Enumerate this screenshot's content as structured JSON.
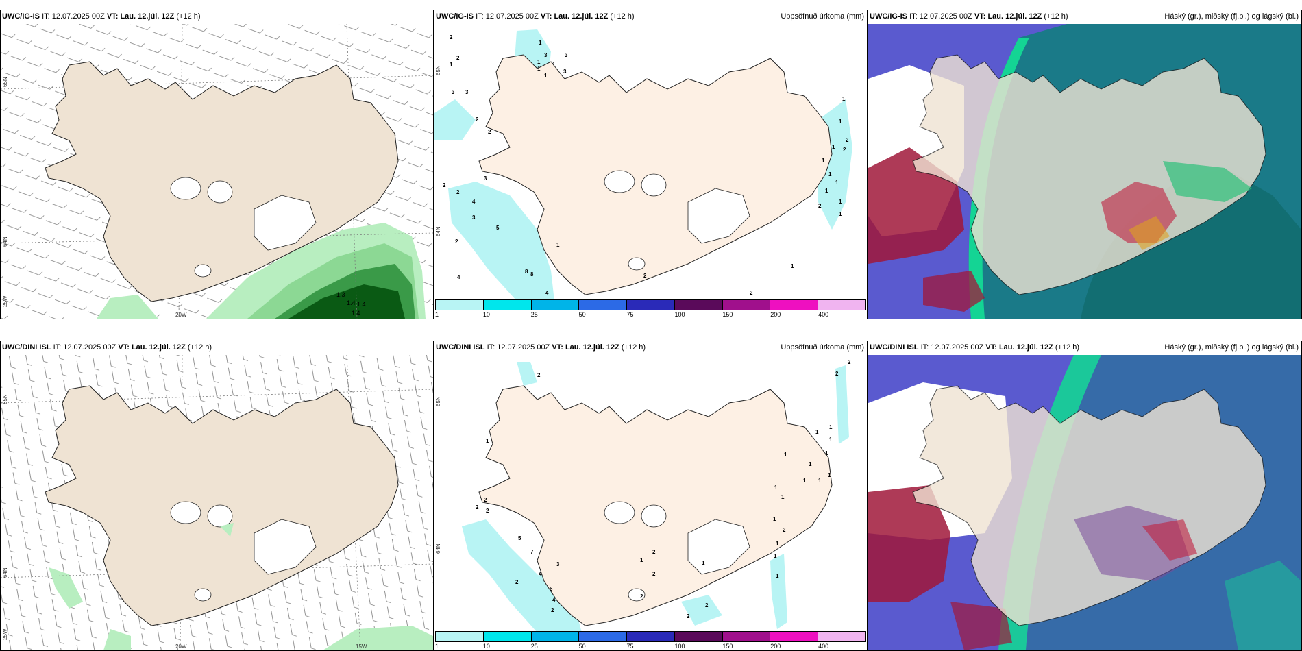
{
  "panels": [
    {
      "id": "p1",
      "model": "UWC/IG-IS",
      "it_label": "IT:",
      "it_value": "12.07.2025 00Z",
      "vt_label": "VT:",
      "vt_value": "Lau. 12.júl. 12Z",
      "lead": "(+12 h)",
      "right_title": "",
      "axis": {
        "lat1": "65N",
        "lat2": "64N",
        "lat3": "25W",
        "lon1": "20W"
      },
      "precip_values": [
        "1.3",
        "1.4",
        "1.4",
        "1.4"
      ]
    },
    {
      "id": "p2",
      "model": "UWC/IG-IS",
      "it_label": "IT:",
      "it_value": "12.07.2025 00Z",
      "vt_label": "VT:",
      "vt_value": "Lau. 12.júl. 12Z",
      "lead": "(+12 h)",
      "right_title": "Uppsöfnuð úrkoma (mm)",
      "axis": {
        "lat1": "65N",
        "lat2": "64N"
      },
      "precip_values": [
        "2",
        "1",
        "2",
        "1",
        "3",
        "3",
        "1",
        "3",
        "1",
        "1",
        "1",
        "3",
        "3",
        "2",
        "2",
        "3",
        "2",
        "4",
        "5",
        "2",
        "3",
        "2",
        "8",
        "8",
        "4",
        "4",
        "1",
        "1",
        "1",
        "1",
        "2",
        "2",
        "2",
        "1",
        "1",
        "1",
        "1",
        "2",
        "1",
        "1",
        "1",
        "2"
      ]
    },
    {
      "id": "p3",
      "model": "UWC/IG-IS",
      "it_label": "IT:",
      "it_value": "12.07.2025 00Z",
      "vt_label": "VT:",
      "vt_value": "Lau. 12.júl. 12Z",
      "lead": "(+12 h)",
      "right_title": "Háský (gr.), miðský (fj.bl.) og lágský (bl.)"
    },
    {
      "id": "p4",
      "model": "UWC/DINI ISL",
      "it_label": "IT:",
      "it_value": "12.07.2025 00Z",
      "vt_label": "VT:",
      "vt_value": "Lau. 12.júl. 12Z",
      "lead": "(+12 h)",
      "right_title": "",
      "axis": {
        "lat1": "65N",
        "lat2": "64N",
        "lat3": "25W",
        "lon1": "20W",
        "lon2": "15W"
      }
    },
    {
      "id": "p5",
      "model": "UWC/DINI ISL",
      "it_label": "IT:",
      "it_value": "12.07.2025 00Z",
      "vt_label": "VT:",
      "vt_value": "Lau. 12.júl. 12Z",
      "lead": "(+12 h)",
      "right_title": "Uppsöfnuð úrkoma (mm)",
      "axis": {
        "lat1": "65N",
        "lat2": "64N"
      },
      "precip_values": [
        "2",
        "2",
        "1",
        "2",
        "2",
        "5",
        "7",
        "3",
        "4",
        "6",
        "2",
        "4",
        "2",
        "1",
        "2",
        "1",
        "2",
        "2",
        "2",
        "2",
        "1",
        "1",
        "1",
        "1",
        "1",
        "1",
        "1",
        "1",
        "2",
        "1",
        "1",
        "1",
        "1",
        "1",
        "1",
        "1",
        "2",
        "2"
      ]
    },
    {
      "id": "p6",
      "model": "UWC/DINI ISL",
      "it_label": "IT:",
      "it_value": "12.07.2025 00Z",
      "vt_label": "VT:",
      "vt_value": "Lau. 12.júl. 12Z",
      "lead": "(+12 h)",
      "right_title": "Háský (gr.), miðský (fj.bl.) og lágský (bl.)"
    }
  ],
  "precip_legend": {
    "labels": [
      "1",
      "10",
      "25",
      "50",
      "75",
      "100",
      "150",
      "200",
      "400"
    ],
    "colors": [
      "#b8f4f4",
      "#00e6ec",
      "#00b4e8",
      "#2c6ae6",
      "#2a2ab8",
      "#5a0a5a",
      "#a0108c",
      "#ee10c0",
      "#f0b4f0"
    ]
  },
  "colors": {
    "land": "#efe3d3",
    "land_light": "#fdf0e4",
    "ice": "#ffffff",
    "sea_cloud_low": "#5a5acf",
    "sea_cloud_mid": "#1a7a88",
    "cloud_high": "#14d494",
    "cloud_red": "#a0183a",
    "precip_light": "#b8eec0",
    "precip_mid": "#68c070",
    "precip_dark": "#0a5a14"
  }
}
